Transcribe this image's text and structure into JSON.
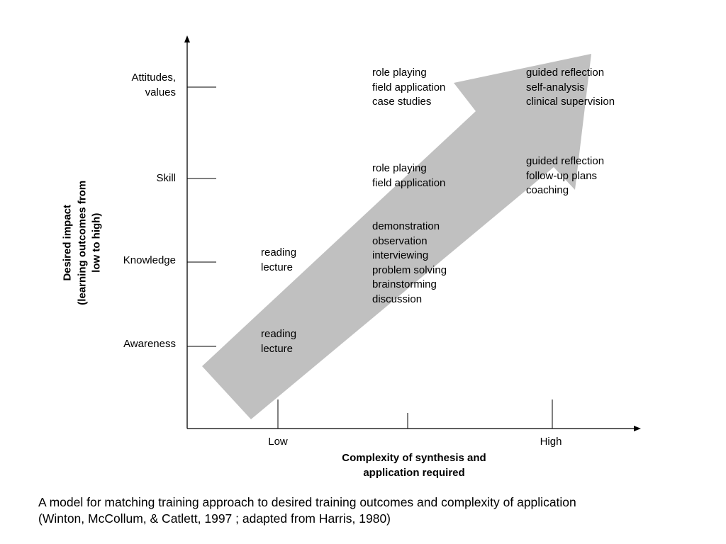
{
  "y_axis": {
    "title_lines": [
      "Desired impact",
      "(learning outcomes from",
      "low to high)"
    ],
    "levels": [
      {
        "lines": [
          "Attitudes,",
          "values"
        ]
      },
      {
        "lines": [
          "Skill"
        ]
      },
      {
        "lines": [
          "Knowledge"
        ]
      },
      {
        "lines": [
          "Awareness"
        ]
      }
    ]
  },
  "x_axis": {
    "title_lines": [
      "Complexity of synthesis and",
      "application required"
    ],
    "low_label": "Low",
    "high_label": "High"
  },
  "cells": {
    "attitudes_mid": [
      "role playing",
      "field application",
      "case studies"
    ],
    "attitudes_high": [
      "guided reflection",
      "self-analysis",
      "clinical supervision"
    ],
    "skill_mid": [
      "role playing",
      "field application"
    ],
    "skill_high": [
      "guided reflection",
      "follow-up plans",
      "coaching"
    ],
    "knowledge_mid": [
      "demonstration",
      "observation",
      "interviewing",
      "problem solving",
      "brainstorming",
      "discussion"
    ],
    "knowledge_low": [
      "reading",
      "lecture"
    ],
    "awareness_low": [
      "reading",
      "lecture"
    ]
  },
  "caption_lines": [
    "A model for matching training approach to desired training outcomes and complexity of application",
    "(Winton, McCollum, & Catlett, 1997 ; adapted from Harris, 1980)"
  ],
  "colors": {
    "arrow": "#c0c0c0",
    "axis": "#000000",
    "text": "#000000"
  }
}
